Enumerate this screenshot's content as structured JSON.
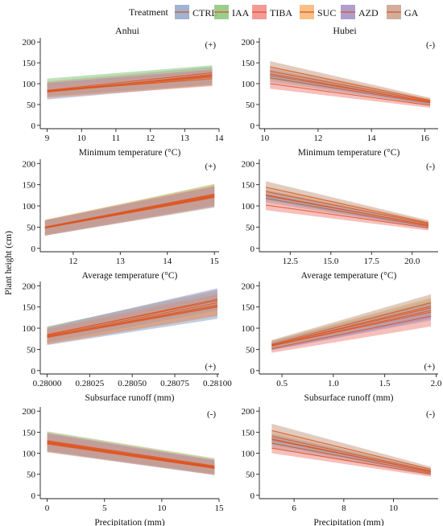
{
  "legend": {
    "title": "Treatment",
    "items": [
      {
        "name": "CTRL",
        "color": "#8fa6c9"
      },
      {
        "name": "IAA",
        "color": "#8ac57a"
      },
      {
        "name": "TIBA",
        "color": "#f08a84"
      },
      {
        "name": "SUC",
        "color": "#f6b571"
      },
      {
        "name": "AZD",
        "color": "#a08ec3"
      },
      {
        "name": "GA",
        "color": "#c9a08a"
      }
    ]
  },
  "line_color": "#e0521c",
  "ylabel": "Plant height (cm)",
  "columns": [
    "Anhui",
    "Hubei"
  ],
  "chart_data": [
    {
      "type": "line",
      "panel": "Anhui",
      "xlabel": "Minimum temperature (°C)",
      "sign": "(+)",
      "sign_pos": "top-right",
      "xlim": [
        8.8,
        14.0
      ],
      "xticks": [
        9,
        10,
        11,
        12,
        13,
        14
      ],
      "xtick_labels": [
        "9",
        "10",
        "11",
        "12",
        "13",
        "14"
      ],
      "ylim": [
        -8,
        210
      ],
      "yticks": [
        0,
        50,
        100,
        150,
        200
      ],
      "x_range": [
        9,
        13.8
      ],
      "series": [
        {
          "name": "CTRL",
          "y": [
            80,
            122
          ],
          "band": [
            [
              62,
              97
            ],
            [
              105,
              140
            ]
          ]
        },
        {
          "name": "IAA",
          "y": [
            84,
            126
          ],
          "band": [
            [
              68,
              100
            ],
            [
              112,
              144
            ]
          ]
        },
        {
          "name": "TIBA",
          "y": [
            80,
            116
          ],
          "band": [
            [
              66,
              94
            ],
            [
              100,
              132
            ]
          ]
        },
        {
          "name": "SUC",
          "y": [
            82,
            120
          ],
          "band": [
            [
              68,
              96
            ],
            [
              104,
              136
            ]
          ]
        },
        {
          "name": "AZD",
          "y": [
            83,
            118
          ],
          "band": [
            [
              70,
              98
            ],
            [
              102,
              134
            ]
          ]
        },
        {
          "name": "GA",
          "y": [
            82,
            112
          ],
          "band": [
            [
              68,
              96
            ],
            [
              96,
              128
            ]
          ]
        }
      ]
    },
    {
      "type": "line",
      "panel": "Hubei",
      "xlabel": "Minimum temperature (°C)",
      "sign": "(-)",
      "sign_pos": "top-right",
      "xlim": [
        9.8,
        16.5
      ],
      "xticks": [
        10,
        12,
        14,
        16
      ],
      "xtick_labels": [
        "10",
        "12",
        "14",
        "16"
      ],
      "ylim": [
        -8,
        210
      ],
      "yticks": [
        0,
        50,
        100,
        150,
        200
      ],
      "x_range": [
        10.2,
        16.2
      ],
      "series": [
        {
          "name": "CTRL",
          "y": [
            114,
            54
          ],
          "band": [
            [
              104,
              48
            ],
            [
              124,
              60
            ]
          ]
        },
        {
          "name": "IAA",
          "y": [
            120,
            56
          ],
          "band": [
            [
              110,
              50
            ],
            [
              130,
              62
            ]
          ]
        },
        {
          "name": "TIBA",
          "y": [
            100,
            48
          ],
          "band": [
            [
              88,
              42
            ],
            [
              112,
              54
            ]
          ]
        },
        {
          "name": "SUC",
          "y": [
            130,
            58
          ],
          "band": [
            [
              118,
              52
            ],
            [
              142,
              64
            ]
          ]
        },
        {
          "name": "AZD",
          "y": [
            124,
            55
          ],
          "band": [
            [
              112,
              49
            ],
            [
              136,
              61
            ]
          ]
        },
        {
          "name": "GA",
          "y": [
            140,
            60
          ],
          "band": [
            [
              126,
              54
            ],
            [
              154,
              66
            ]
          ]
        }
      ]
    },
    {
      "type": "line",
      "panel": "Anhui",
      "xlabel": "Average temperature (°C)",
      "sign": "(+)",
      "sign_pos": "top-right",
      "xlim": [
        11.3,
        15.1
      ],
      "xticks": [
        12,
        13,
        14,
        15
      ],
      "xtick_labels": [
        "12",
        "13",
        "14",
        "15"
      ],
      "ylim": [
        -8,
        210
      ],
      "yticks": [
        0,
        50,
        100,
        150,
        200
      ],
      "x_range": [
        11.4,
        15
      ],
      "series": [
        {
          "name": "CTRL",
          "y": [
            48,
            122
          ],
          "band": [
            [
              30,
              98
            ],
            [
              66,
              146
            ]
          ]
        },
        {
          "name": "IAA",
          "y": [
            50,
            128
          ],
          "band": [
            [
              34,
              104
            ],
            [
              66,
              152
            ]
          ]
        },
        {
          "name": "TIBA",
          "y": [
            48,
            124
          ],
          "band": [
            [
              30,
              100
            ],
            [
              66,
              148
            ]
          ]
        },
        {
          "name": "SUC",
          "y": [
            50,
            126
          ],
          "band": [
            [
              32,
              102
            ],
            [
              68,
              150
            ]
          ]
        },
        {
          "name": "AZD",
          "y": [
            49,
            123
          ],
          "band": [
            [
              32,
              100
            ],
            [
              66,
              146
            ]
          ]
        },
        {
          "name": "GA",
          "y": [
            48,
            120
          ],
          "band": [
            [
              30,
              96
            ],
            [
              66,
              144
            ]
          ]
        }
      ]
    },
    {
      "type": "line",
      "panel": "Hubei",
      "xlabel": "Average temperature (°C)",
      "sign": "(-)",
      "sign_pos": "top-right",
      "xlim": [
        10.6,
        21.6
      ],
      "xticks": [
        12.5,
        15,
        17.5,
        20
      ],
      "xtick_labels": [
        "12.5",
        "15.0",
        "17.5",
        "20.0"
      ],
      "ylim": [
        -8,
        210
      ],
      "yticks": [
        0,
        50,
        100,
        150,
        200
      ],
      "x_range": [
        11,
        21
      ],
      "series": [
        {
          "name": "CTRL",
          "y": [
            118,
            52
          ],
          "band": [
            [
              108,
              46
            ],
            [
              128,
              58
            ]
          ]
        },
        {
          "name": "IAA",
          "y": [
            124,
            55
          ],
          "band": [
            [
              114,
              49
            ],
            [
              134,
              61
            ]
          ]
        },
        {
          "name": "TIBA",
          "y": [
            102,
            48
          ],
          "band": [
            [
              90,
              42
            ],
            [
              114,
              54
            ]
          ]
        },
        {
          "name": "SUC",
          "y": [
            134,
            58
          ],
          "band": [
            [
              122,
              52
            ],
            [
              146,
              64
            ]
          ]
        },
        {
          "name": "AZD",
          "y": [
            126,
            54
          ],
          "band": [
            [
              114,
              48
            ],
            [
              138,
              60
            ]
          ]
        },
        {
          "name": "GA",
          "y": [
            144,
            60
          ],
          "band": [
            [
              130,
              54
            ],
            [
              158,
              66
            ]
          ]
        }
      ]
    },
    {
      "type": "line",
      "panel": "Anhui",
      "xlabel": "Subsurface runoff (mm)",
      "sign": "(+)",
      "sign_pos": "bottom-right",
      "xlim": [
        0.27996,
        0.28101
      ],
      "xticks": [
        0.28,
        0.28025,
        0.2805,
        0.28075,
        0.281
      ],
      "xtick_labels": [
        "0.28000",
        "0.28025",
        "0.28050",
        "0.28075",
        "0.28100"
      ],
      "ylim": [
        -8,
        210
      ],
      "yticks": [
        0,
        50,
        100,
        150,
        200
      ],
      "x_range": [
        0.28,
        0.281
      ],
      "series": [
        {
          "name": "CTRL",
          "y": [
            78,
            150
          ],
          "band": [
            [
              60,
              122
            ],
            [
              96,
              178
            ]
          ]
        },
        {
          "name": "IAA",
          "y": [
            85,
            165
          ],
          "band": [
            [
              66,
              140
            ],
            [
              104,
              190
            ]
          ]
        },
        {
          "name": "TIBA",
          "y": [
            80,
            155
          ],
          "band": [
            [
              62,
              130
            ],
            [
              98,
              180
            ]
          ]
        },
        {
          "name": "SUC",
          "y": [
            82,
            160
          ],
          "band": [
            [
              64,
              135
            ],
            [
              100,
              185
            ]
          ]
        },
        {
          "name": "AZD",
          "y": [
            84,
            168
          ],
          "band": [
            [
              66,
              142
            ],
            [
              102,
              194
            ]
          ]
        },
        {
          "name": "GA",
          "y": [
            80,
            152
          ],
          "band": [
            [
              62,
              128
            ],
            [
              98,
              176
            ]
          ]
        }
      ]
    },
    {
      "type": "line",
      "panel": "Hubei",
      "xlabel": "Subsurface runoff (mm)",
      "sign": "(+)",
      "sign_pos": "bottom-right",
      "xlim": [
        0.28,
        2.02
      ],
      "xticks": [
        0.5,
        1.0,
        1.5,
        2.0
      ],
      "xtick_labels": [
        "0.5",
        "1.0",
        "1.5",
        "2.0"
      ],
      "ylim": [
        -8,
        210
      ],
      "yticks": [
        0,
        50,
        100,
        150,
        200
      ],
      "x_range": [
        0.4,
        1.95
      ],
      "series": [
        {
          "name": "CTRL",
          "y": [
            58,
            138
          ],
          "band": [
            [
              48,
              118
            ],
            [
              68,
              158
            ]
          ]
        },
        {
          "name": "IAA",
          "y": [
            60,
            148
          ],
          "band": [
            [
              50,
              128
            ],
            [
              70,
              168
            ]
          ]
        },
        {
          "name": "TIBA",
          "y": [
            52,
            128
          ],
          "band": [
            [
              42,
              104
            ],
            [
              62,
              150
            ]
          ]
        },
        {
          "name": "SUC",
          "y": [
            60,
            152
          ],
          "band": [
            [
              50,
              132
            ],
            [
              70,
              172
            ]
          ]
        },
        {
          "name": "AZD",
          "y": [
            58,
            142
          ],
          "band": [
            [
              48,
              122
            ],
            [
              68,
              162
            ]
          ]
        },
        {
          "name": "GA",
          "y": [
            62,
            160
          ],
          "band": [
            [
              52,
              140
            ],
            [
              72,
              180
            ]
          ]
        }
      ]
    },
    {
      "type": "line",
      "panel": "Anhui",
      "xlabel": "Precipitation (mm)",
      "sign": "(-)",
      "sign_pos": "top-right",
      "xlim": [
        -0.6,
        15.0
      ],
      "xticks": [
        0,
        5,
        10,
        15
      ],
      "xtick_labels": [
        "0",
        "5",
        "10",
        "15"
      ],
      "ylim": [
        -8,
        210
      ],
      "yticks": [
        0,
        50,
        100,
        150,
        200
      ],
      "x_range": [
        0,
        14.6
      ],
      "series": [
        {
          "name": "CTRL",
          "y": [
            125,
            65
          ],
          "band": [
            [
              104,
              48
            ],
            [
              146,
              82
            ]
          ]
        },
        {
          "name": "IAA",
          "y": [
            130,
            70
          ],
          "band": [
            [
              108,
              52
            ],
            [
              152,
              88
            ]
          ]
        },
        {
          "name": "TIBA",
          "y": [
            124,
            66
          ],
          "band": [
            [
              104,
              50
            ],
            [
              144,
              82
            ]
          ]
        },
        {
          "name": "SUC",
          "y": [
            128,
            68
          ],
          "band": [
            [
              106,
              50
            ],
            [
              150,
              86
            ]
          ]
        },
        {
          "name": "AZD",
          "y": [
            126,
            67
          ],
          "band": [
            [
              105,
              50
            ],
            [
              148,
              84
            ]
          ]
        },
        {
          "name": "GA",
          "y": [
            122,
            64
          ],
          "band": [
            [
              102,
              48
            ],
            [
              142,
              80
            ]
          ]
        }
      ]
    },
    {
      "type": "line",
      "panel": "Hubei",
      "xlabel": "Precipitation (mm)",
      "sign": "(-)",
      "sign_pos": "top-right",
      "xlim": [
        4.6,
        11.8
      ],
      "xticks": [
        6,
        8,
        10
      ],
      "xtick_labels": [
        "6",
        "8",
        "10"
      ],
      "ylim": [
        -8,
        210
      ],
      "yticks": [
        0,
        50,
        100,
        150,
        200
      ],
      "x_range": [
        5.1,
        11.5
      ],
      "series": [
        {
          "name": "CTRL",
          "y": [
            124,
            53
          ],
          "band": [
            [
              112,
              47
            ],
            [
              136,
              59
            ]
          ]
        },
        {
          "name": "IAA",
          "y": [
            132,
            56
          ],
          "band": [
            [
              120,
              50
            ],
            [
              144,
              62
            ]
          ]
        },
        {
          "name": "TIBA",
          "y": [
            112,
            50
          ],
          "band": [
            [
              100,
              44
            ],
            [
              124,
              56
            ]
          ]
        },
        {
          "name": "SUC",
          "y": [
            140,
            58
          ],
          "band": [
            [
              126,
              52
            ],
            [
              154,
              64
            ]
          ]
        },
        {
          "name": "AZD",
          "y": [
            134,
            56
          ],
          "band": [
            [
              122,
              50
            ],
            [
              146,
              62
            ]
          ]
        },
        {
          "name": "GA",
          "y": [
            154,
            62
          ],
          "band": [
            [
              138,
              56
            ],
            [
              170,
              68
            ]
          ]
        }
      ]
    }
  ]
}
